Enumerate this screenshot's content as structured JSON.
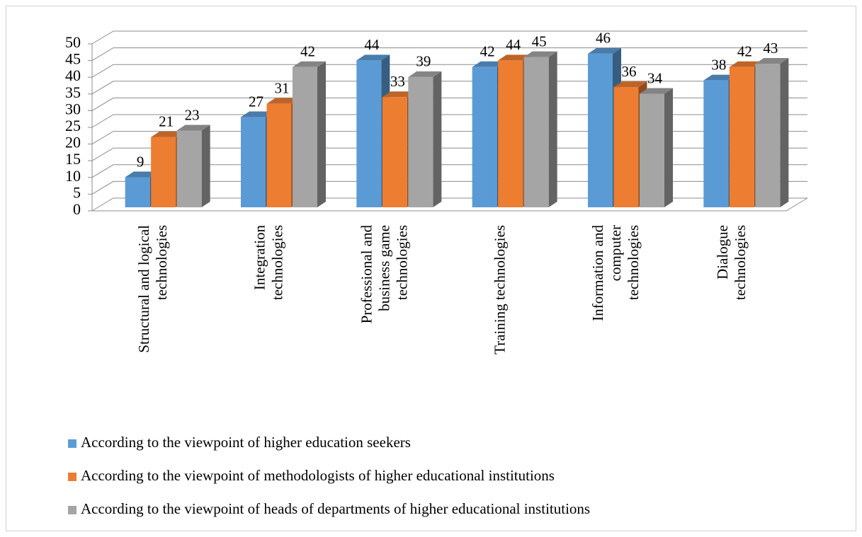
{
  "chart_data": {
    "type": "bar3d",
    "categories": [
      "Structural and logical\ntechnologies",
      "Integration\ntechnologies",
      "Professional and\nbusiness game\ntechnologies",
      "Training technologies",
      "Information and\ncomputer\ntechnologies",
      "Dialogue\ntechnologies"
    ],
    "series": [
      {
        "name": "According to the viewpoint of higher education seekers",
        "color": "#5b9bd5",
        "values": [
          9,
          27,
          44,
          42,
          46,
          38
        ]
      },
      {
        "name": "According to the viewpoint of methodologists of higher educational institutions",
        "color": "#ed7d31",
        "values": [
          21,
          31,
          33,
          44,
          36,
          42
        ]
      },
      {
        "name": "According to the viewpoint of heads of departments of higher educational institutions",
        "color": "#a5a5a5",
        "values": [
          23,
          42,
          39,
          45,
          34,
          43
        ]
      }
    ],
    "ylim": [
      0,
      50
    ],
    "yticks": [
      0,
      5,
      10,
      15,
      20,
      25,
      30,
      35,
      40,
      45,
      50
    ],
    "grid": true,
    "legend": "bottom"
  }
}
